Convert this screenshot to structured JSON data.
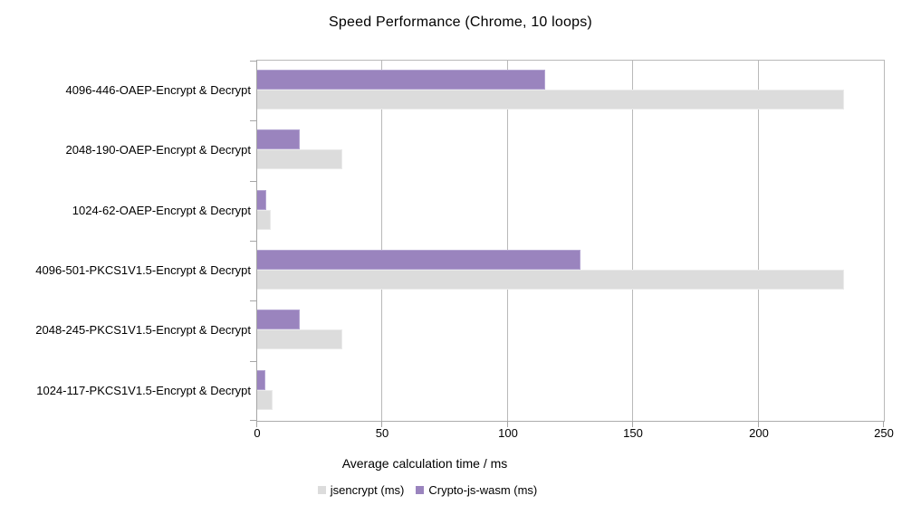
{
  "title": "Speed Performance (Chrome, 10 loops)",
  "chart_data": {
    "type": "bar",
    "orientation": "horizontal",
    "title": "Speed Performance (Chrome, 10 loops)",
    "categories": [
      "4096-446-OAEP-Encrypt & Decrypt",
      "2048-190-OAEP-Encrypt & Decrypt",
      "1024-62-OAEP-Encrypt & Decrypt",
      "4096-501-PKCS1V1.5-Encrypt & Decrypt",
      "2048-245-PKCS1V1.5-Encrypt & Decrypt",
      "1024-117-PKCS1V1.5-Encrypt & Decrypt"
    ],
    "series": [
      {
        "name": "jsencrypt (ms)",
        "color": "#dcdcdc",
        "border_color": "#eaeaea",
        "values": [
          234,
          34,
          5.4,
          234,
          34,
          6.1
        ]
      },
      {
        "name": "Crypto-js-wasm (ms)",
        "color": "#9a84be",
        "border_color": "#b3a4d1",
        "values": [
          115,
          17,
          3.6,
          129,
          17,
          3.2
        ]
      }
    ],
    "bar_row_order_top_to_bottom": [
      "Crypto-js-wasm (ms)",
      "jsencrypt (ms)"
    ],
    "xlabel": "Average calculation time / ms",
    "xlim": [
      0,
      250
    ],
    "xticks": [
      0,
      50,
      100,
      150,
      200,
      250
    ],
    "grid": "vertical-gridlines-at-xticks",
    "legend_position": "bottom-center"
  },
  "legend": {
    "items": [
      {
        "label": "jsencrypt (ms)",
        "color": "#dcdcdc"
      },
      {
        "label": "Crypto-js-wasm (ms)",
        "color": "#9a84be"
      }
    ]
  },
  "colors": {
    "background": "#ffffff",
    "grid": "#b9b9b9",
    "axis": "#a6a6a6",
    "text": "#000000"
  }
}
